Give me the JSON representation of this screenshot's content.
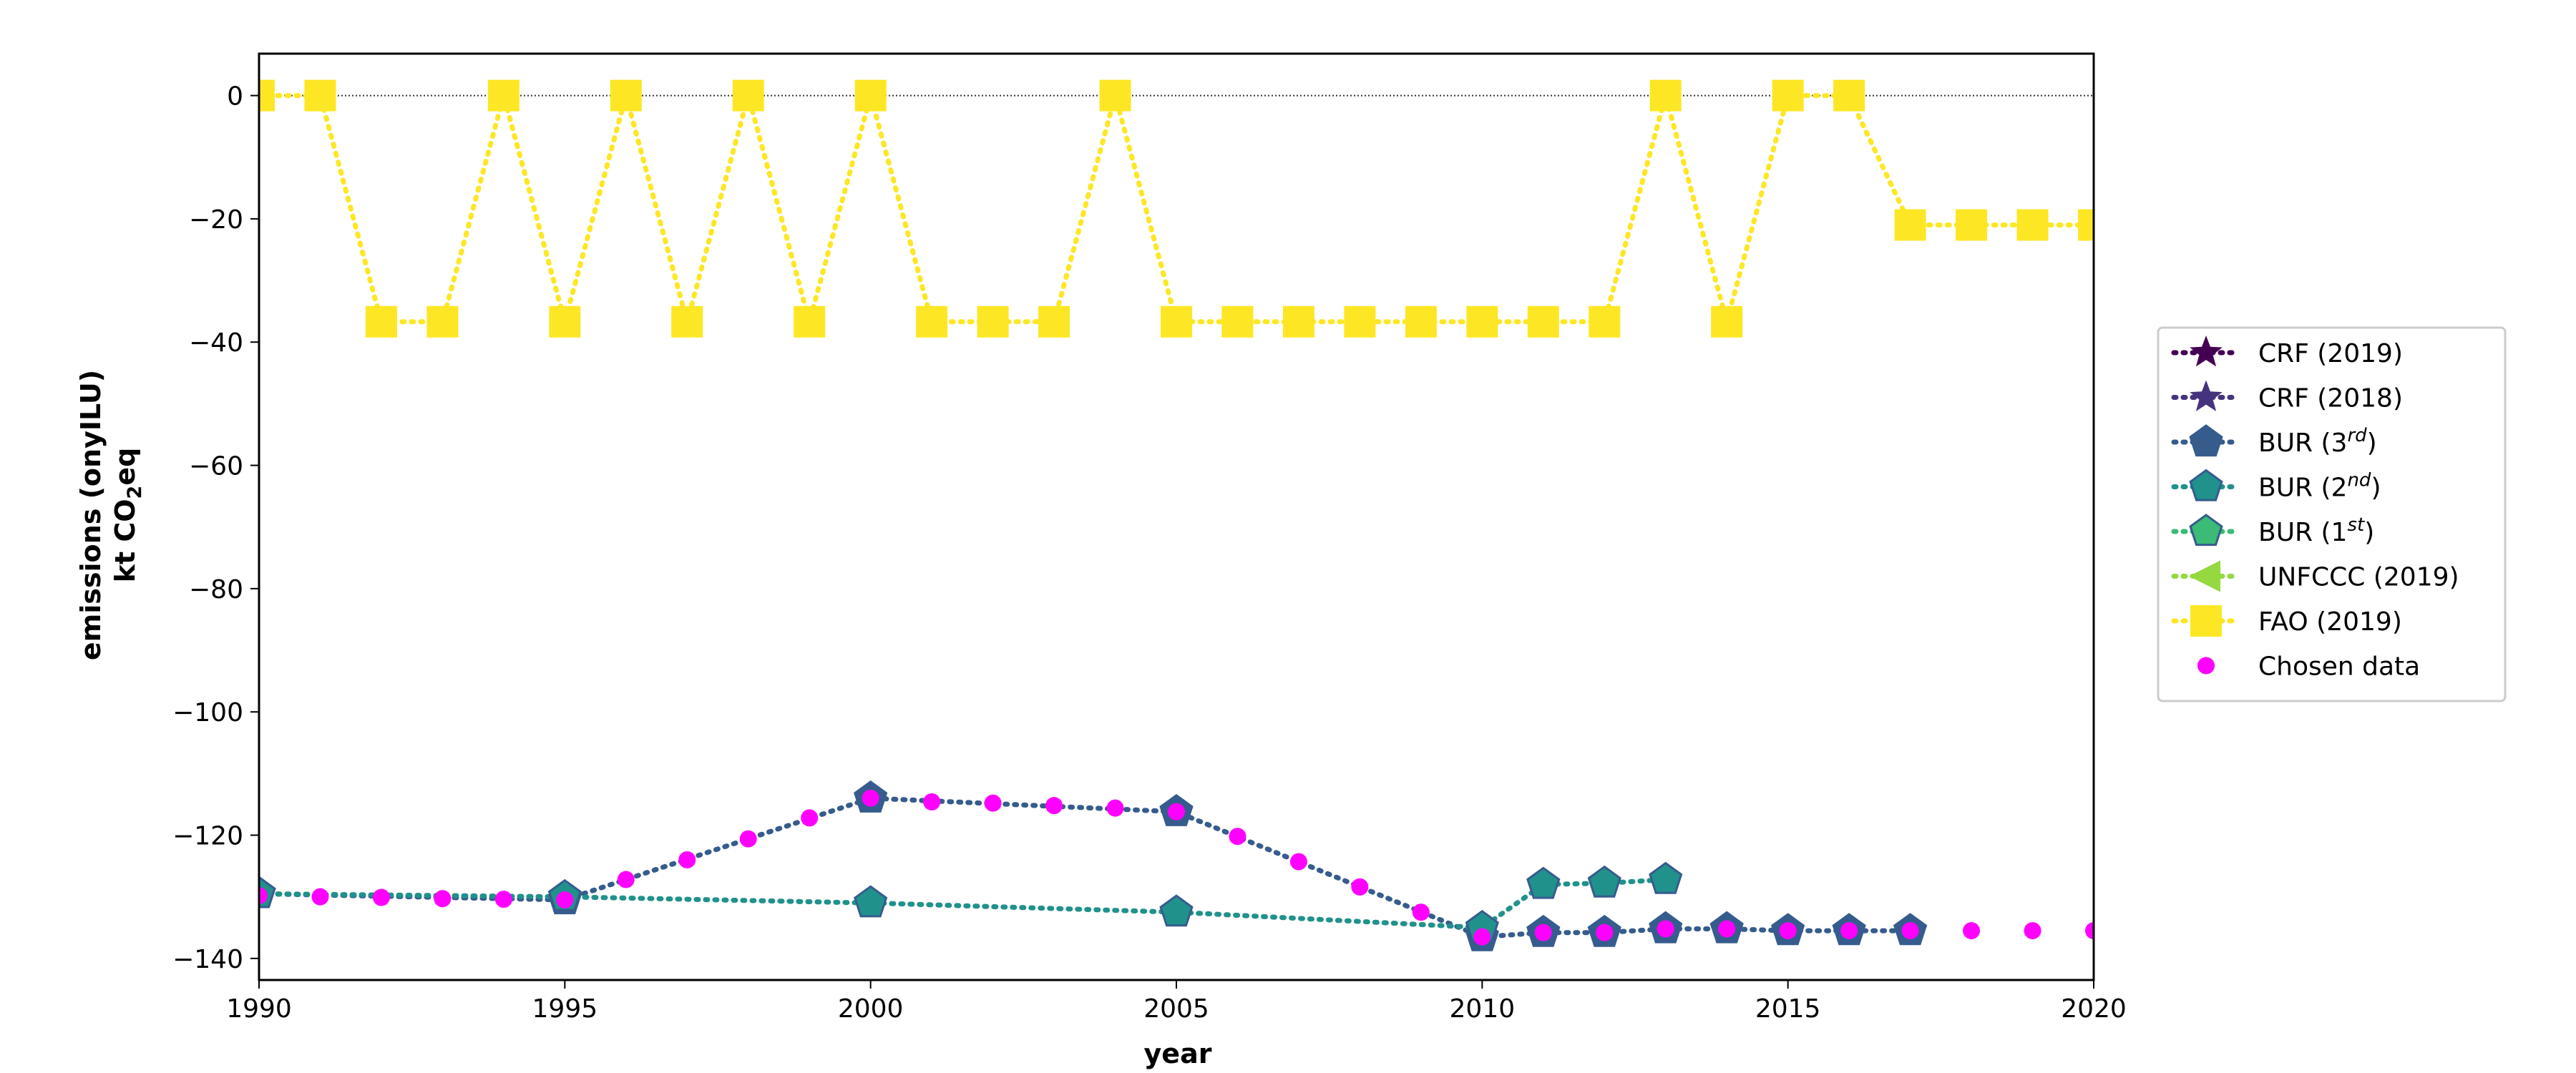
{
  "chart_data": {
    "type": "line",
    "xlabel": "year",
    "ylabel_line1": "emissions (onyILU)",
    "ylabel_line2_prefix": "kt CO",
    "ylabel_line2_sub": "2",
    "ylabel_line2_suffix": "eq",
    "xlim": [
      1990,
      2020
    ],
    "ylim": [
      -143.5,
      6.8
    ],
    "xticks": [
      1990,
      1995,
      2000,
      2005,
      2010,
      2015,
      2020
    ],
    "yticks": [
      0,
      -20,
      -40,
      -60,
      -80,
      -100,
      -120,
      -140
    ],
    "zero_line": true,
    "legend_position": "right",
    "series": [
      {
        "name": "CRF (2019)",
        "name_main": "CRF (2019)",
        "marker": "star",
        "color": "#440154",
        "line": "dotted",
        "x": [],
        "y": []
      },
      {
        "name": "CRF (2018)",
        "name_main": "CRF (2018)",
        "marker": "star",
        "color": "#46337e",
        "line": "dotted",
        "x": [],
        "y": []
      },
      {
        "name": "BUR (3rd)",
        "name_main": "BUR (3",
        "name_sup": "rd",
        "name_end": ")",
        "marker": "pentagon",
        "color": "#365c8d",
        "line": "dotted",
        "x": [
          1990,
          1995,
          2000,
          2005,
          2010,
          2011,
          2012,
          2013,
          2014,
          2015,
          2016,
          2017
        ],
        "y": [
          -129.5,
          -130.5,
          -114.0,
          -116.2,
          -136.5,
          -135.8,
          -135.8,
          -135.2,
          -135.2,
          -135.5,
          -135.5,
          -135.5
        ]
      },
      {
        "name": "BUR (2nd)",
        "name_main": "BUR (2",
        "name_sup": "nd",
        "name_end": ")",
        "marker": "pentagon",
        "color": "#21918c",
        "line": "dotted",
        "x": [
          1990,
          1995,
          2000,
          2005,
          2010,
          2011,
          2012,
          2013
        ],
        "y": [
          -129.5,
          -130.0,
          -131.0,
          -132.5,
          -135.0,
          -128.0,
          -127.8,
          -127.2
        ]
      },
      {
        "name": "BUR (1st)",
        "name_main": "BUR (1",
        "name_sup": "st",
        "name_end": ")",
        "marker": "pentagon",
        "color": "#3bbb75",
        "line": "dotted",
        "x": [],
        "y": []
      },
      {
        "name": "UNFCCC (2019)",
        "name_main": "UNFCCC (2019)",
        "marker": "triangle-left",
        "color": "#95d840",
        "line": "dotted",
        "x": [],
        "y": []
      },
      {
        "name": "FAO (2019)",
        "name_main": "FAO (2019)",
        "marker": "square",
        "color": "#fde725",
        "line": "dotted",
        "x": [
          1990,
          1991,
          1992,
          1993,
          1994,
          1995,
          1996,
          1997,
          1998,
          1999,
          2000,
          2001,
          2002,
          2003,
          2004,
          2005,
          2006,
          2007,
          2008,
          2009,
          2010,
          2011,
          2012,
          2013,
          2014,
          2015,
          2016,
          2017,
          2018,
          2019,
          2020
        ],
        "y": [
          0,
          0,
          -36.7,
          -36.7,
          0,
          -36.7,
          0,
          -36.7,
          0,
          -36.7,
          0,
          -36.7,
          -36.7,
          -36.7,
          0,
          -36.7,
          -36.7,
          -36.7,
          -36.7,
          -36.7,
          -36.7,
          -36.7,
          -36.7,
          0,
          -36.7,
          0,
          0,
          -21.0,
          -21.0,
          -21.0,
          -21.0
        ]
      },
      {
        "name": "Chosen data",
        "name_main": "Chosen data",
        "marker": "circle",
        "color": "#ff00ff",
        "line": "none",
        "x": [
          1990,
          1991,
          1992,
          1993,
          1994,
          1995,
          1996,
          1997,
          1998,
          1999,
          2000,
          2001,
          2002,
          2003,
          2004,
          2005,
          2006,
          2007,
          2008,
          2009,
          2010,
          2011,
          2012,
          2013,
          2014,
          2015,
          2016,
          2017,
          2018,
          2019,
          2020
        ],
        "y": [
          -129.8,
          -130.0,
          -130.1,
          -130.3,
          -130.4,
          -130.5,
          -127.2,
          -124.0,
          -120.6,
          -117.2,
          -114.0,
          -114.6,
          -114.8,
          -115.2,
          -115.6,
          -116.2,
          -120.2,
          -124.3,
          -128.4,
          -132.5,
          -136.5,
          -135.8,
          -135.8,
          -135.2,
          -135.2,
          -135.5,
          -135.5,
          -135.5,
          -135.5,
          -135.5,
          -135.5
        ]
      }
    ]
  }
}
